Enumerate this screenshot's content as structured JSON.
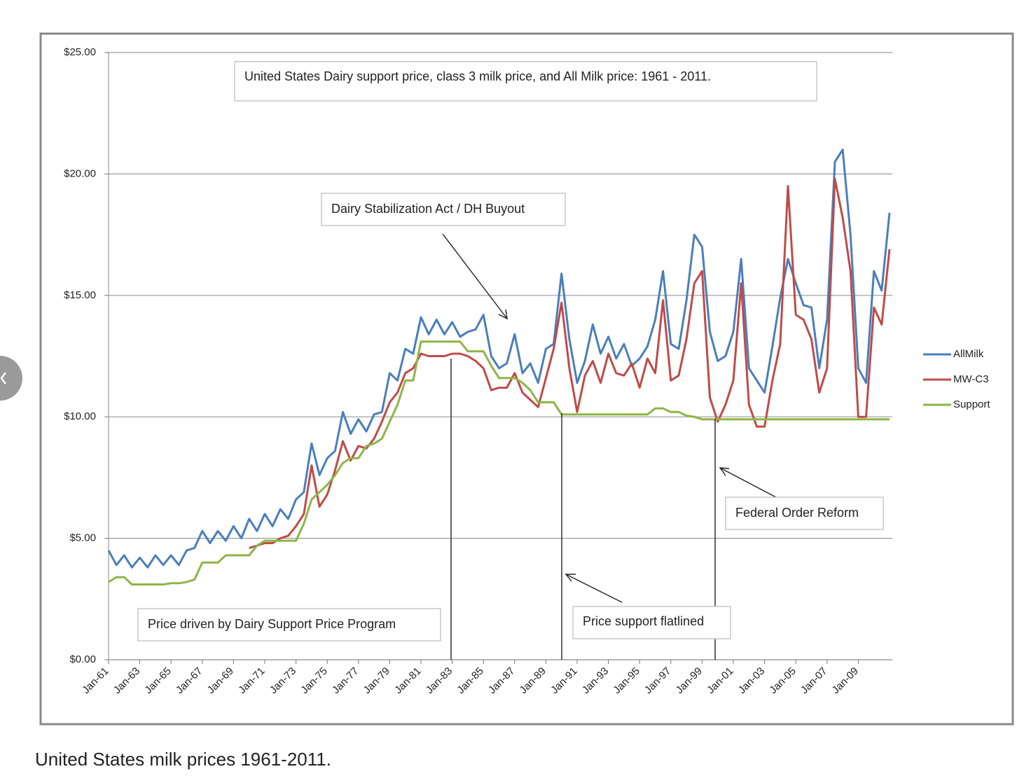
{
  "chart_data": {
    "type": "line",
    "title": "United States Dairy support price, class 3 milk price, and All Milk price: 1961 - 2011.",
    "caption": "United States milk prices 1961-2011.",
    "annotations": [
      "Dairy Stabilization Act / DH Buyout",
      "Price driven by Dairy Support Price Program",
      "Price support flatlined",
      "Federal Order Reform"
    ],
    "categories": [
      "Jan-61",
      null,
      null,
      null,
      "Jan-63",
      null,
      null,
      null,
      "Jan-65",
      null,
      null,
      null,
      "Jan-67",
      null,
      null,
      null,
      "Jan-69",
      null,
      null,
      null,
      "Jan-71",
      null,
      null,
      null,
      "Jan-73",
      null,
      null,
      null,
      "Jan-75",
      null,
      null,
      null,
      "Jan-77",
      null,
      null,
      null,
      "Jan-79",
      null,
      null,
      null,
      "Jan-81",
      null,
      null,
      null,
      "Jan-83",
      null,
      null,
      null,
      "Jan-85",
      null,
      null,
      null,
      "Jan-87",
      null,
      null,
      null,
      "Jan-89",
      null,
      null,
      null,
      "Jan-91",
      null,
      null,
      null,
      "Jan-93",
      null,
      null,
      null,
      "Jan-95",
      null,
      null,
      null,
      "Jan-97",
      null,
      null,
      null,
      "Jan-99",
      null,
      null,
      null,
      "Jan-01",
      null,
      null,
      null,
      "Jan-03",
      null,
      null,
      null,
      "Jan-05",
      null,
      null,
      null,
      "Jan-07",
      null,
      null,
      null,
      "Jan-09",
      null,
      null,
      null,
      null
    ],
    "ylim": [
      0,
      25
    ],
    "yticks": [
      {
        "value": 0,
        "label": "$0.00"
      },
      {
        "value": 5,
        "label": "$5.00"
      },
      {
        "value": 10,
        "label": "$10.00"
      },
      {
        "value": 15,
        "label": "$15.00"
      },
      {
        "value": 20,
        "label": "$20.00"
      },
      {
        "value": 25,
        "label": "$25.00"
      }
    ],
    "grid": true,
    "legend": "right",
    "series": [
      {
        "name": "AllMilk",
        "color": "#4a7ebb",
        "values": [
          4.5,
          3.9,
          4.3,
          3.8,
          4.2,
          3.8,
          4.3,
          3.9,
          4.3,
          3.9,
          4.5,
          4.6,
          5.3,
          4.8,
          5.3,
          4.9,
          5.5,
          5.0,
          5.8,
          5.3,
          6.0,
          5.5,
          6.2,
          5.8,
          6.6,
          6.9,
          8.9,
          7.6,
          8.3,
          8.6,
          10.2,
          9.3,
          9.9,
          9.4,
          10.1,
          10.2,
          11.8,
          11.5,
          12.8,
          12.6,
          14.1,
          13.4,
          14.0,
          13.4,
          13.9,
          13.3,
          13.5,
          13.6,
          14.2,
          12.5,
          12.0,
          12.2,
          13.4,
          11.8,
          12.2,
          11.4,
          12.8,
          13.0,
          15.9,
          13.2,
          11.4,
          12.3,
          13.8,
          12.6,
          13.3,
          12.4,
          13.0,
          12.1,
          12.4,
          12.9,
          14.0,
          16.0,
          13.0,
          12.8,
          14.8,
          17.5,
          17.0,
          13.5,
          12.3,
          12.5,
          13.5,
          16.5,
          12.0,
          11.5,
          11.0,
          12.9,
          14.9,
          16.5,
          15.5,
          14.6,
          14.5,
          12.0,
          14.0,
          20.5,
          21.0,
          17.5,
          12.0,
          11.4,
          16.0,
          15.2,
          18.4
        ]
      },
      {
        "name": "MW-C3",
        "color": "#be4b48",
        "values": [
          null,
          null,
          null,
          null,
          null,
          null,
          null,
          null,
          null,
          null,
          null,
          null,
          null,
          null,
          null,
          null,
          null,
          null,
          4.6,
          4.7,
          4.8,
          4.8,
          5.0,
          5.1,
          5.5,
          6.0,
          8.0,
          6.3,
          6.8,
          7.8,
          9.0,
          8.2,
          8.8,
          8.7,
          9.1,
          9.8,
          10.6,
          11.0,
          11.8,
          12.0,
          12.6,
          12.5,
          12.5,
          12.5,
          12.6,
          12.6,
          12.5,
          12.3,
          12.0,
          11.1,
          11.2,
          11.2,
          11.8,
          11.0,
          10.7,
          10.4,
          11.6,
          12.8,
          14.7,
          12.0,
          10.2,
          11.7,
          12.3,
          11.4,
          12.6,
          11.8,
          11.7,
          12.2,
          11.2,
          12.4,
          11.8,
          14.8,
          11.5,
          11.7,
          13.2,
          15.5,
          16.0,
          10.8,
          9.8,
          10.5,
          11.5,
          15.5,
          10.5,
          9.6,
          9.6,
          11.5,
          13.0,
          19.5,
          14.2,
          14.0,
          13.2,
          11.0,
          12.0,
          19.8,
          18.2,
          16.0,
          10.0,
          10.0,
          14.5,
          13.8,
          16.9
        ]
      },
      {
        "name": "Support",
        "color": "#8db545",
        "values": [
          3.2,
          3.4,
          3.4,
          3.1,
          3.1,
          3.1,
          3.1,
          3.1,
          3.15,
          3.15,
          3.2,
          3.3,
          4.0,
          4.0,
          4.0,
          4.3,
          4.3,
          4.3,
          4.3,
          4.7,
          4.9,
          4.9,
          4.9,
          4.9,
          4.9,
          5.6,
          6.6,
          6.9,
          7.2,
          7.6,
          8.1,
          8.3,
          8.3,
          8.8,
          8.9,
          9.1,
          9.8,
          10.5,
          11.5,
          11.5,
          13.1,
          13.1,
          13.1,
          13.1,
          13.1,
          13.1,
          12.7,
          12.7,
          12.7,
          12.1,
          11.6,
          11.6,
          11.6,
          11.4,
          11.1,
          10.6,
          10.6,
          10.6,
          10.1,
          10.1,
          10.1,
          10.1,
          10.1,
          10.1,
          10.1,
          10.1,
          10.1,
          10.1,
          10.1,
          10.1,
          10.35,
          10.35,
          10.2,
          10.2,
          10.05,
          10.0,
          9.9,
          9.9,
          9.9,
          9.9,
          9.9,
          9.9,
          9.9,
          9.9,
          9.9,
          9.9,
          9.9,
          9.9,
          9.9,
          9.9,
          9.9,
          9.9,
          9.9,
          9.9,
          9.9,
          9.9,
          9.9,
          9.9,
          9.9,
          9.9,
          9.9
        ]
      }
    ]
  }
}
